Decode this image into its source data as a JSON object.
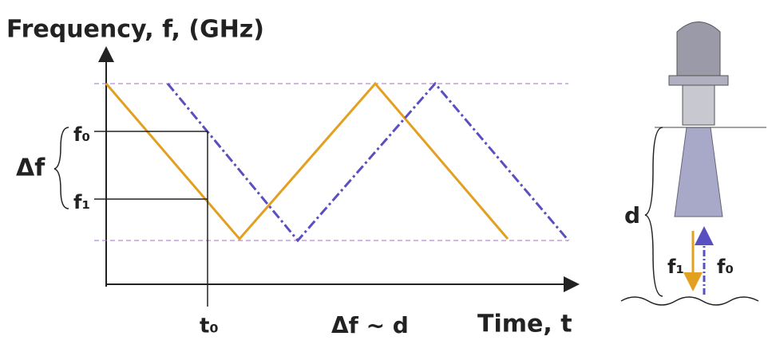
{
  "axis": {
    "y_label": "Frequency, f, (GHz)",
    "x_label": "Time, t"
  },
  "labels": {
    "f0": "f₀",
    "f1": "f₁",
    "delta_f": "Δf",
    "t0": "t₀",
    "relation": "Δf ~ d"
  },
  "antenna": {
    "distance": "d",
    "transmit": "f₁",
    "receive": "f₀"
  }
}
